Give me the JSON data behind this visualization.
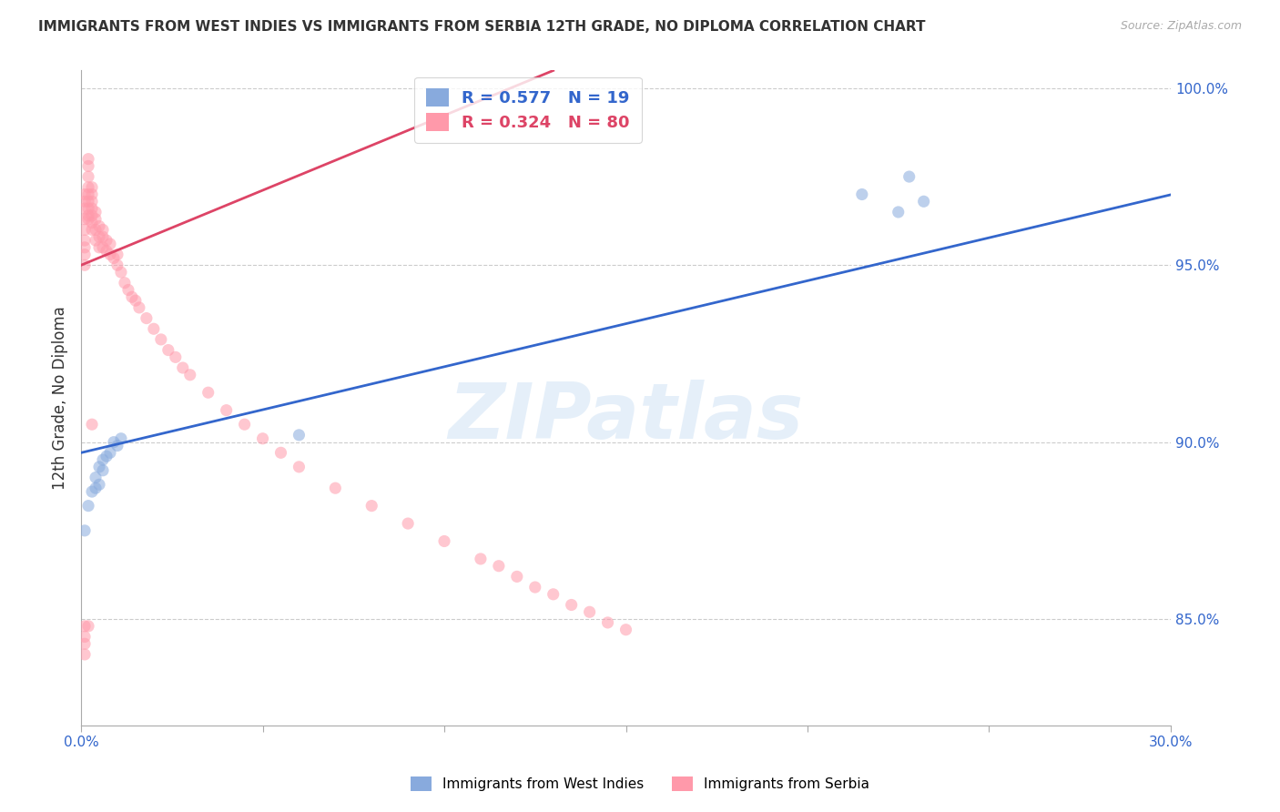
{
  "title": "IMMIGRANTS FROM WEST INDIES VS IMMIGRANTS FROM SERBIA 12TH GRADE, NO DIPLOMA CORRELATION CHART",
  "source": "Source: ZipAtlas.com",
  "ylabel": "12th Grade, No Diploma",
  "xlim": [
    0.0,
    0.3
  ],
  "ylim": [
    0.82,
    1.005
  ],
  "xticks": [
    0.0,
    0.05,
    0.1,
    0.15,
    0.2,
    0.25,
    0.3
  ],
  "xticklabels": [
    "0.0%",
    "",
    "",
    "",
    "",
    "",
    "30.0%"
  ],
  "yticks": [
    0.85,
    0.9,
    0.95,
    1.0
  ],
  "yticklabels": [
    "85.0%",
    "90.0%",
    "95.0%",
    "100.0%"
  ],
  "blue_color": "#88AADD",
  "pink_color": "#FF99AA",
  "blue_line_color": "#3366CC",
  "pink_line_color": "#DD4466",
  "R_blue": 0.577,
  "N_blue": 19,
  "R_pink": 0.324,
  "N_pink": 80,
  "watermark": "ZIPatlas",
  "legend_label_blue": "Immigrants from West Indies",
  "legend_label_pink": "Immigrants from Serbia",
  "blue_x": [
    0.001,
    0.002,
    0.003,
    0.004,
    0.004,
    0.005,
    0.005,
    0.006,
    0.006,
    0.007,
    0.008,
    0.009,
    0.01,
    0.011,
    0.06,
    0.215,
    0.225,
    0.228,
    0.232
  ],
  "blue_y": [
    0.875,
    0.882,
    0.886,
    0.887,
    0.89,
    0.888,
    0.893,
    0.892,
    0.895,
    0.896,
    0.897,
    0.9,
    0.899,
    0.901,
    0.902,
    0.97,
    0.965,
    0.975,
    0.968
  ],
  "pink_x": [
    0.001,
    0.001,
    0.001,
    0.001,
    0.001,
    0.001,
    0.001,
    0.001,
    0.001,
    0.002,
    0.002,
    0.002,
    0.002,
    0.002,
    0.002,
    0.002,
    0.002,
    0.002,
    0.003,
    0.003,
    0.003,
    0.003,
    0.003,
    0.003,
    0.003,
    0.004,
    0.004,
    0.004,
    0.004,
    0.005,
    0.005,
    0.005,
    0.006,
    0.006,
    0.006,
    0.007,
    0.007,
    0.008,
    0.008,
    0.009,
    0.01,
    0.01,
    0.011,
    0.012,
    0.013,
    0.014,
    0.015,
    0.016,
    0.018,
    0.02,
    0.022,
    0.024,
    0.026,
    0.028,
    0.03,
    0.035,
    0.04,
    0.045,
    0.05,
    0.055,
    0.06,
    0.07,
    0.08,
    0.09,
    0.1,
    0.11,
    0.115,
    0.12,
    0.125,
    0.13,
    0.135,
    0.14,
    0.145,
    0.15,
    0.002,
    0.003,
    0.001,
    0.001,
    0.001,
    0.001
  ],
  "pink_y": [
    0.95,
    0.953,
    0.955,
    0.957,
    0.96,
    0.963,
    0.966,
    0.968,
    0.97,
    0.963,
    0.964,
    0.966,
    0.968,
    0.97,
    0.972,
    0.975,
    0.978,
    0.98,
    0.96,
    0.962,
    0.964,
    0.966,
    0.968,
    0.97,
    0.972,
    0.957,
    0.96,
    0.963,
    0.965,
    0.955,
    0.958,
    0.961,
    0.955,
    0.958,
    0.96,
    0.954,
    0.957,
    0.953,
    0.956,
    0.952,
    0.95,
    0.953,
    0.948,
    0.945,
    0.943,
    0.941,
    0.94,
    0.938,
    0.935,
    0.932,
    0.929,
    0.926,
    0.924,
    0.921,
    0.919,
    0.914,
    0.909,
    0.905,
    0.901,
    0.897,
    0.893,
    0.887,
    0.882,
    0.877,
    0.872,
    0.867,
    0.865,
    0.862,
    0.859,
    0.857,
    0.854,
    0.852,
    0.849,
    0.847,
    0.848,
    0.905,
    0.848,
    0.845,
    0.843,
    0.84
  ]
}
